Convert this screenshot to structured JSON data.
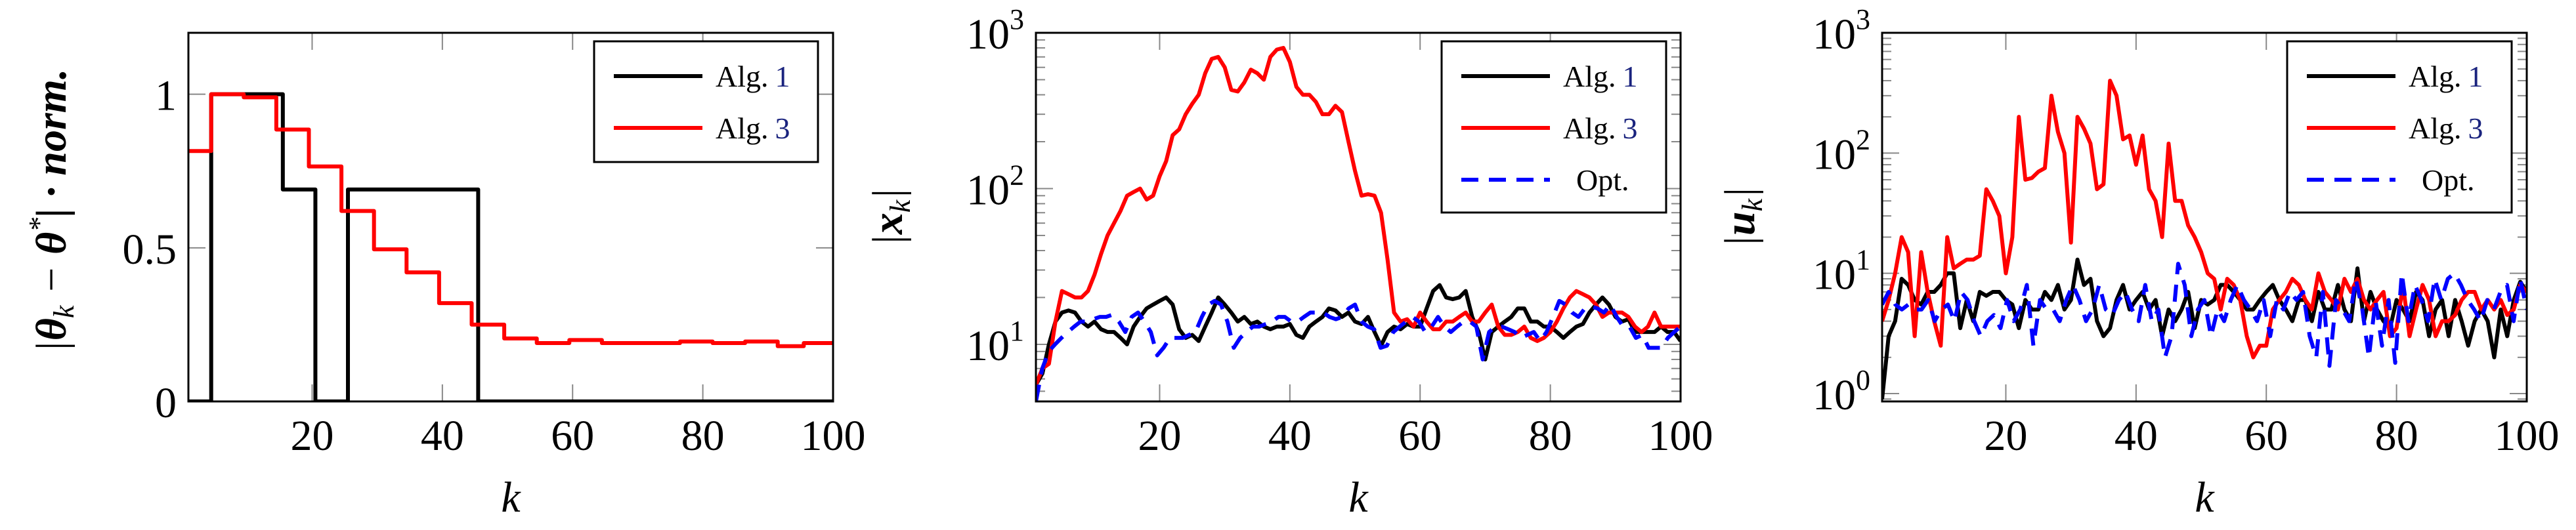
{
  "colors": {
    "alg1": "#000000",
    "alg3": "#ff0000",
    "opt": "#0000ff",
    "ref": "#1a237e"
  },
  "chart_data": [
    {
      "type": "line",
      "xlabel": "k",
      "ylabel": "|θ_k − θ*| · norm.",
      "ylabel_parts": {
        "bar1": "|",
        "theta": "θ",
        "sub": "k",
        "minus": " − ",
        "theta2": "θ",
        "sup": "*",
        "rest": "| · norm."
      },
      "xlim": [
        1,
        100
      ],
      "ylim": [
        0,
        1.2
      ],
      "yscale": "linear",
      "xticks": [
        20,
        40,
        60,
        80,
        100
      ],
      "xtick_labels": [
        "20",
        "40",
        "60",
        "80",
        "100"
      ],
      "yticks": [
        0,
        0.5,
        1
      ],
      "ytick_labels": [
        "0",
        "0.5",
        "1"
      ],
      "legend": [
        {
          "label": "Alg.",
          "ref": "1",
          "series": "alg1"
        },
        {
          "label": "Alg.",
          "ref": "3",
          "series": "alg3"
        }
      ],
      "legend_position": "top-right",
      "series": [
        {
          "name": "Alg. 1",
          "key": "alg1",
          "step": [
            [
              1,
              4,
              0
            ],
            [
              5,
              15,
              1
            ],
            [
              16,
              20,
              0.69
            ],
            [
              21,
              25,
              0
            ],
            [
              26,
              45,
              0.69
            ],
            [
              46,
              100,
              0
            ]
          ]
        },
        {
          "name": "Alg. 3",
          "key": "alg3",
          "step": [
            [
              1,
              4,
              0.815
            ],
            [
              5,
              9,
              1
            ],
            [
              10,
              14,
              0.99
            ],
            [
              15,
              19,
              0.885
            ],
            [
              20,
              24,
              0.765
            ],
            [
              25,
              29,
              0.62
            ],
            [
              30,
              34,
              0.495
            ],
            [
              35,
              39,
              0.42
            ],
            [
              40,
              44,
              0.32
            ],
            [
              45,
              49,
              0.25
            ],
            [
              50,
              54,
              0.205
            ],
            [
              55,
              59,
              0.19
            ],
            [
              60,
              64,
              0.2
            ],
            [
              65,
              76,
              0.19
            ],
            [
              77,
              81,
              0.195
            ],
            [
              82,
              86,
              0.19
            ],
            [
              87,
              91,
              0.195
            ],
            [
              92,
              95,
              0.18
            ],
            [
              96,
              100,
              0.19
            ]
          ]
        }
      ]
    },
    {
      "type": "line",
      "xlabel": "k",
      "ylabel": "|x_k|",
      "ylabel_parts": {
        "bar1": "|",
        "var": "x",
        "sub": "k",
        "bar2": "|"
      },
      "xlim": [
        1,
        100
      ],
      "ylim": [
        4.3,
        1000
      ],
      "yscale": "log",
      "xticks": [
        20,
        40,
        60,
        80,
        100
      ],
      "xtick_labels": [
        "20",
        "40",
        "60",
        "80",
        "100"
      ],
      "yticks": [
        10,
        100,
        1000
      ],
      "ytick_labels": [
        {
          "base": "10",
          "exp": "1"
        },
        {
          "base": "10",
          "exp": "2"
        },
        {
          "base": "10",
          "exp": "3"
        }
      ],
      "legend": [
        {
          "label": "Alg.",
          "ref": "1",
          "series": "alg1"
        },
        {
          "label": "Alg.",
          "ref": "3",
          "series": "alg3"
        },
        {
          "label": "Opt.",
          "ref": "",
          "series": "opt"
        }
      ],
      "legend_position": "top-right",
      "series": [
        {
          "name": "Alg. 1",
          "key": "alg1",
          "values": [
            5.5,
            6.5,
            10,
            14,
            16,
            16.5,
            16,
            14,
            13,
            14,
            12.5,
            12,
            12,
            11,
            10,
            13,
            15,
            17,
            18,
            19,
            20,
            18,
            12.5,
            11,
            11.5,
            10.5,
            13,
            16,
            20,
            18,
            16,
            14,
            15,
            13.5,
            14,
            13,
            12.5,
            13,
            13,
            13.5,
            11.5,
            11,
            13,
            14,
            15,
            17,
            16.5,
            15,
            16,
            14,
            13.5,
            15,
            12,
            9.8,
            12,
            13,
            12.5,
            13.5,
            13,
            13,
            17,
            22,
            24,
            20,
            19.5,
            20,
            22,
            15,
            12,
            8,
            12,
            13,
            14,
            15,
            17,
            17,
            14,
            14,
            13,
            13,
            12,
            11,
            12,
            13,
            13.5,
            16,
            18,
            20,
            18,
            15,
            14,
            14.5,
            12,
            12,
            12,
            12,
            13,
            12,
            12,
            10.5
          ]
        },
        {
          "name": "Alg. 3",
          "key": "alg3",
          "values": [
            5.5,
            7,
            7.5,
            14,
            22,
            21,
            20,
            20,
            22,
            28,
            38,
            50,
            60,
            72,
            90,
            95,
            100,
            85,
            90,
            120,
            150,
            220,
            240,
            300,
            350,
            400,
            550,
            680,
            700,
            600,
            430,
            420,
            480,
            580,
            550,
            500,
            700,
            780,
            800,
            650,
            450,
            400,
            400,
            360,
            300,
            300,
            340,
            310,
            200,
            130,
            90,
            92,
            90,
            70,
            35,
            16,
            14,
            14.5,
            13,
            16,
            14,
            12.5,
            12.5,
            14,
            14,
            15,
            16,
            14,
            14,
            16,
            18,
            13,
            11.5,
            11.5,
            12,
            13,
            11,
            10.5,
            11,
            12,
            14,
            17,
            20,
            22,
            21,
            20,
            18,
            15,
            16,
            16,
            16,
            15,
            13,
            12,
            13,
            16,
            13,
            13,
            13,
            13
          ]
        },
        {
          "name": "Opt.",
          "key": "opt",
          "values": [
            4.3,
            7,
            9,
            10,
            11,
            12,
            13,
            14,
            14,
            14.5,
            15,
            15,
            15.5,
            14,
            12,
            15,
            16,
            14,
            12,
            8.5,
            9.5,
            11,
            11,
            11,
            11.5,
            12,
            15,
            18,
            19,
            18,
            14,
            9.5,
            11,
            12,
            13,
            13,
            13.5,
            14,
            15,
            15,
            14,
            14,
            15,
            16,
            16,
            16,
            15,
            14.5,
            15,
            17,
            18,
            14,
            13,
            12.5,
            9.5,
            9.8,
            12,
            13,
            14,
            15,
            14,
            12,
            13,
            15,
            13,
            12,
            13,
            14,
            14,
            13,
            8,
            12,
            13,
            13,
            12.5,
            12,
            11,
            11.5,
            12,
            10.5,
            12,
            15,
            19,
            18,
            16,
            15,
            17,
            17.5,
            17,
            16,
            18,
            15,
            13,
            13,
            11,
            11.5,
            9.5,
            9.5,
            9.5,
            11,
            12,
            13
          ]
        }
      ]
    },
    {
      "type": "line",
      "xlabel": "k",
      "ylabel": "|u_k|",
      "ylabel_parts": {
        "bar1": "|",
        "var": "u",
        "sub": "k",
        "bar2": "|"
      },
      "xlim": [
        1,
        100
      ],
      "ylim": [
        0.86,
        1000
      ],
      "yscale": "log",
      "xticks": [
        20,
        40,
        60,
        80,
        100
      ],
      "xtick_labels": [
        "20",
        "40",
        "60",
        "80",
        "100"
      ],
      "yticks": [
        1,
        10,
        100,
        1000
      ],
      "ytick_labels": [
        {
          "base": "10",
          "exp": "0"
        },
        {
          "base": "10",
          "exp": "1"
        },
        {
          "base": "10",
          "exp": "2"
        },
        {
          "base": "10",
          "exp": "3"
        }
      ],
      "legend": [
        {
          "label": "Alg.",
          "ref": "1",
          "series": "alg1"
        },
        {
          "label": "Alg.",
          "ref": "3",
          "series": "alg3"
        },
        {
          "label": "Opt.",
          "ref": "",
          "series": "opt"
        }
      ],
      "legend_position": "top-right",
      "series": [
        {
          "name": "Alg. 1",
          "key": "alg1",
          "values": [
            0.9,
            3,
            4,
            9,
            8,
            6,
            5.5,
            7,
            7,
            8,
            10,
            10,
            3.5,
            6,
            4,
            7,
            6.5,
            7,
            7,
            6,
            5.5,
            3.5,
            6,
            5,
            5,
            7,
            6,
            8,
            5,
            6,
            13,
            8,
            9,
            4,
            3,
            3.5,
            6,
            8,
            5,
            6,
            7,
            5,
            6,
            3,
            5,
            4,
            5,
            7,
            3.5,
            6,
            5.5,
            6,
            8,
            8,
            7,
            6,
            5,
            5,
            6,
            7,
            8,
            6,
            5,
            4,
            6,
            6,
            4,
            7,
            5,
            5,
            8,
            5,
            4,
            11,
            4,
            7,
            5,
            4,
            3.5,
            6,
            5,
            4,
            7,
            6,
            3,
            5,
            6,
            3,
            6,
            4,
            2.5,
            4,
            5,
            4,
            2,
            5,
            3,
            6,
            8.5,
            7
          ]
        },
        {
          "name": "Alg. 3",
          "key": "alg3",
          "values": [
            4,
            6,
            10,
            20,
            15,
            3,
            15,
            7,
            4,
            2.5,
            20,
            11,
            12,
            13,
            13,
            14,
            50,
            40,
            30,
            10,
            20,
            200,
            60,
            62,
            70,
            75,
            300,
            150,
            100,
            18,
            200,
            160,
            120,
            50,
            55,
            400,
            300,
            130,
            140,
            80,
            140,
            50,
            40,
            20,
            120,
            40,
            40,
            25,
            20,
            15,
            10,
            9,
            5,
            9,
            8,
            6,
            3,
            2,
            2.5,
            2.5,
            5,
            6,
            7,
            9,
            8,
            6,
            5,
            10,
            7,
            6,
            5,
            9,
            7,
            9,
            6,
            5,
            6,
            7,
            3,
            3.5,
            8,
            3,
            5,
            8,
            6,
            3,
            4,
            4,
            4.5,
            6,
            7,
            7,
            5,
            6,
            5,
            6,
            4.5,
            5,
            8,
            7
          ]
        },
        {
          "name": "Opt.",
          "key": "opt",
          "values": [
            5.5,
            7,
            5.5,
            5,
            5.5,
            5,
            5,
            6,
            4,
            5,
            5.5,
            4,
            7,
            6,
            4,
            3,
            4,
            4.5,
            3.5,
            6,
            4,
            5,
            8,
            2.5,
            6,
            5,
            5,
            4,
            6,
            8,
            6,
            4,
            5,
            8,
            5,
            4.5,
            6,
            7,
            5,
            4,
            8,
            4,
            5,
            2,
            3,
            12,
            8,
            3,
            5,
            6,
            3,
            5,
            4,
            6,
            8,
            6,
            5,
            4,
            6,
            3,
            6,
            5,
            7,
            6,
            7,
            3,
            2,
            7,
            1.7,
            6,
            5,
            4,
            9,
            5,
            2,
            6,
            2.5,
            6,
            1.8,
            10,
            4,
            8,
            6,
            4,
            9,
            6,
            9,
            10,
            8,
            6,
            5,
            4,
            6,
            5,
            7,
            8,
            4,
            9,
            5
          ]
        }
      ]
    }
  ]
}
